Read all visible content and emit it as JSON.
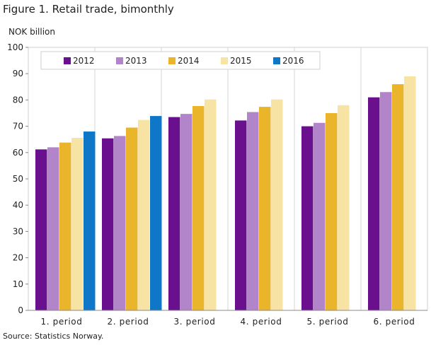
{
  "header": {
    "title": "Figure 1. Retail trade, bimonthly",
    "unit": "NOK billion"
  },
  "footer": {
    "source": "Source: Statistics Norway."
  },
  "chart_data": {
    "type": "bar",
    "title": "Figure 1. Retail trade, bimonthly",
    "ylabel": "NOK billion",
    "xlabel": "",
    "ylim": [
      0,
      100
    ],
    "yticks": [
      0,
      10,
      20,
      30,
      40,
      50,
      60,
      70,
      80,
      90,
      100
    ],
    "grid": "vertical separators between categories",
    "legend_position": "top",
    "categories": [
      "1. period",
      "2. period",
      "3. period",
      "4. period",
      "5. period",
      "6. period"
    ],
    "series": [
      {
        "name": "2012",
        "color": "#6a0f8e",
        "values": [
          61.2,
          65.4,
          73.5,
          72.2,
          70.0,
          81.0
        ]
      },
      {
        "name": "2013",
        "color": "#b284c9",
        "values": [
          62.0,
          66.3,
          74.7,
          75.4,
          71.3,
          83.0
        ]
      },
      {
        "name": "2014",
        "color": "#eab52a",
        "values": [
          63.8,
          69.5,
          77.7,
          77.4,
          75.0,
          86.0
        ]
      },
      {
        "name": "2015",
        "color": "#f7e3a3",
        "values": [
          65.6,
          72.4,
          80.2,
          80.2,
          78.0,
          89.0
        ]
      },
      {
        "name": "2016",
        "color": "#0f77c8",
        "values": [
          68.0,
          73.9,
          null,
          null,
          null,
          null
        ]
      }
    ]
  }
}
